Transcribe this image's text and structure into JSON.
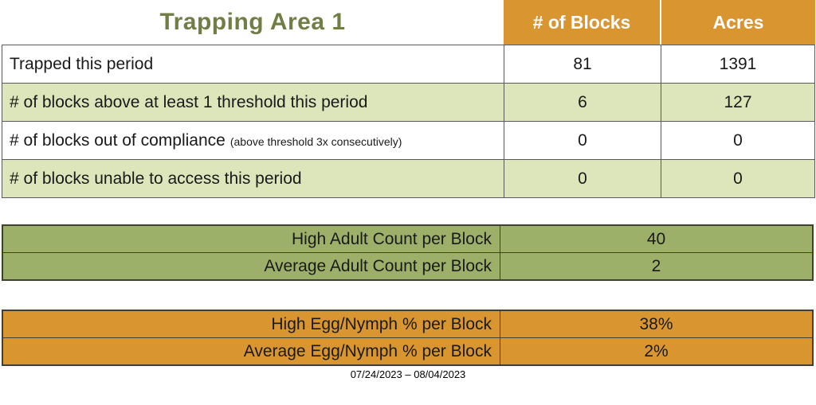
{
  "title": "Trapping Area 1",
  "main_table": {
    "columns": [
      "# of Blocks",
      "Acres"
    ],
    "rows": [
      {
        "label": "Trapped this period",
        "note": "",
        "blocks": "81",
        "acres": "1391"
      },
      {
        "label": "# of blocks above at least 1 threshold this period",
        "note": "",
        "blocks": "6",
        "acres": "127"
      },
      {
        "label": "# of blocks out of compliance",
        "note": "(above threshold 3x consecutively)",
        "blocks": "0",
        "acres": "0"
      },
      {
        "label": "# of blocks unable to access this period",
        "note": "",
        "blocks": "0",
        "acres": "0"
      }
    ]
  },
  "adult_table": {
    "rows": [
      {
        "label": "High Adult Count per Block",
        "value": "40"
      },
      {
        "label": "Average Adult Count per Block",
        "value": "2"
      }
    ]
  },
  "egg_table": {
    "rows": [
      {
        "label": "High Egg/Nymph % per Block",
        "value": "38%"
      },
      {
        "label": "Average Egg/Nymph % per Block",
        "value": "2%"
      }
    ]
  },
  "footer": {
    "date_range": "07/24/2023 – 08/04/2023"
  },
  "colors": {
    "title_green": "#707D45",
    "header_orange": "#D9952F",
    "row_light_green": "#DCE6BA",
    "subtable_olive": "#9DB069",
    "subtable_orange": "#D9952F",
    "border_dark": "#3F3F33",
    "table_border_gray": "#595959",
    "header_text": "#ffffff",
    "body_text": "#1a1a1a"
  }
}
